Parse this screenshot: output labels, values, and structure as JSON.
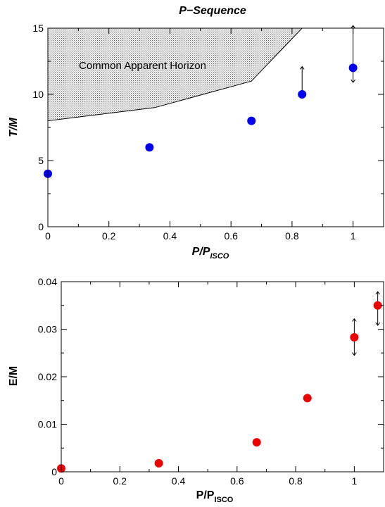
{
  "chart_data": [
    {
      "type": "scatter",
      "title": "P−Sequence",
      "xlabel": "P/P",
      "xlabel_sub": "ISCO",
      "ylabel": "T/M",
      "xlim": [
        0,
        1.1
      ],
      "ylim": [
        0,
        15
      ],
      "xticks": [
        0,
        0.2,
        0.4,
        0.6,
        0.8,
        1
      ],
      "xtick_labels": [
        "0",
        "0.2",
        "0.4",
        "0.6",
        "0.8",
        "1"
      ],
      "yticks": [
        0,
        5,
        10,
        15
      ],
      "ytick_labels": [
        "0",
        "5",
        "10",
        "15"
      ],
      "grid": false,
      "marker_color": "#0000ee",
      "points": [
        {
          "x": 0,
          "y": 4
        },
        {
          "x": 0.333,
          "y": 6
        },
        {
          "x": 0.667,
          "y": 8
        },
        {
          "x": 0.833,
          "y": 10
        },
        {
          "x": 1,
          "y": 12
        }
      ],
      "error_arrows": [
        {
          "x": 0.833,
          "y_low": 10,
          "y_high": 12.1
        },
        {
          "x": 1,
          "y_low": 10.9,
          "y_high": 15.2
        }
      ],
      "shaded_region": {
        "label": "Common Apparent Horizon",
        "boundary_x": [
          0,
          0.35,
          0.667,
          0.833
        ],
        "boundary_y": [
          8,
          9,
          11,
          15
        ]
      }
    },
    {
      "type": "scatter",
      "title": "",
      "xlabel": "P/P",
      "xlabel_sub": "ISCO",
      "ylabel": "E/M",
      "xlim": [
        0,
        1.1
      ],
      "ylim": [
        0,
        0.04
      ],
      "xticks": [
        0,
        0.2,
        0.4,
        0.6,
        0.8,
        1
      ],
      "xtick_labels": [
        "0",
        "0.2",
        "0.4",
        "0.6",
        "0.8",
        "1"
      ],
      "yticks": [
        0,
        0.01,
        0.02,
        0.03,
        0.04
      ],
      "ytick_labels": [
        "0",
        "0.01",
        "0.02",
        "0.03",
        "0.04"
      ],
      "grid": false,
      "marker_color": "#ee0000",
      "points": [
        {
          "x": 0,
          "y": 0.0007
        },
        {
          "x": 0.333,
          "y": 0.0018
        },
        {
          "x": 0.667,
          "y": 0.0062
        },
        {
          "x": 0.84,
          "y": 0.0155
        },
        {
          "x": 1,
          "y": 0.0283
        },
        {
          "x": 1.08,
          "y": 0.035
        }
      ],
      "error_arrows": [
        {
          "x": 1,
          "y_low": 0.0245,
          "y_high": 0.0322
        },
        {
          "x": 1.08,
          "y_low": 0.0308,
          "y_high": 0.0379
        }
      ]
    }
  ]
}
